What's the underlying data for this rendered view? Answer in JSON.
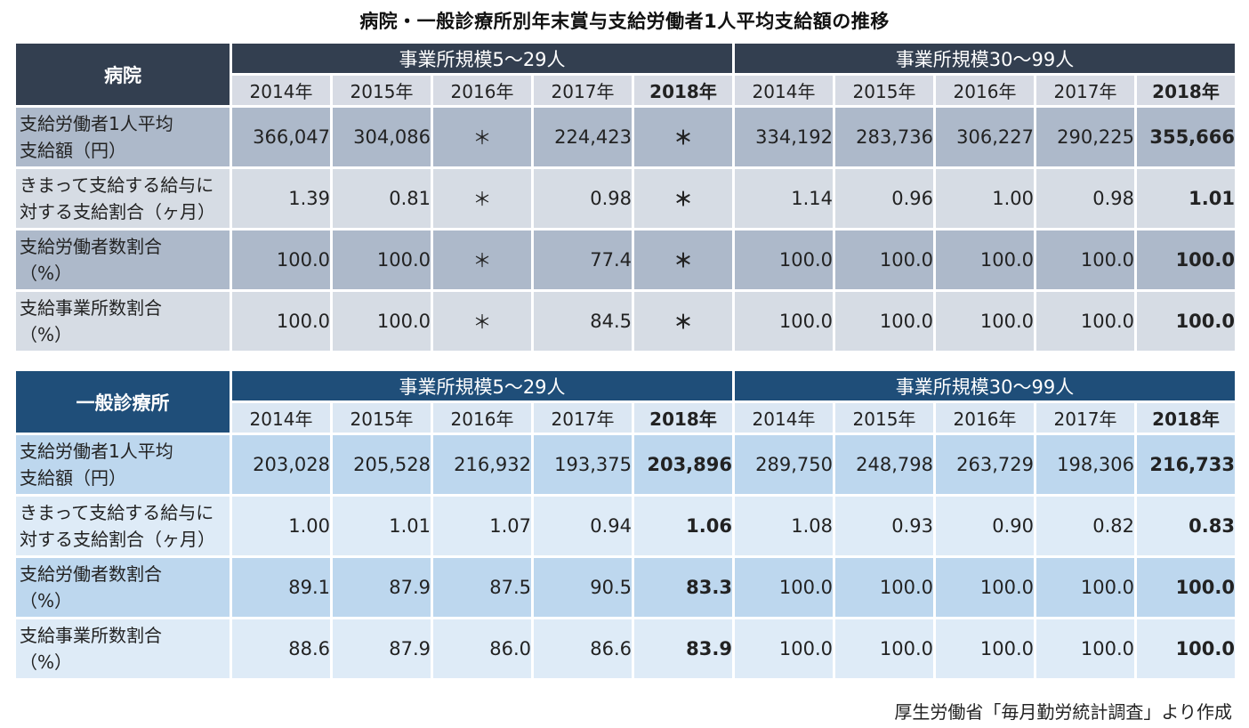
{
  "title": "病院・一般診療所別年末賞与支給労働者1人平均支給額の推移",
  "tables": [
    {
      "name": "病院",
      "groups": [
        "事業所規模5～29人",
        "事業所規模30～99人"
      ],
      "years": [
        "2014年",
        "2015年",
        "2016年",
        "2017年",
        "2018年"
      ],
      "rows": [
        {
          "label1": "支給労働者1人平均",
          "label2": "支給額（円）",
          "g1": [
            "366,047",
            "304,086",
            "＊",
            "224,423",
            "＊"
          ],
          "g2": [
            "334,192",
            "283,736",
            "306,227",
            "290,225",
            "355,666"
          ]
        },
        {
          "label1": "きまって支給する給与に",
          "label2": "対する支給割合（ヶ月）",
          "g1": [
            "1.39",
            "0.81",
            "＊",
            "0.98",
            "＊"
          ],
          "g2": [
            "1.14",
            "0.96",
            "1.00",
            "0.98",
            "1.01"
          ]
        },
        {
          "label1": "支給労働者数割合",
          "label2": "（%）",
          "g1": [
            "100.0",
            "100.0",
            "＊",
            "77.4",
            "＊"
          ],
          "g2": [
            "100.0",
            "100.0",
            "100.0",
            "100.0",
            "100.0"
          ]
        },
        {
          "label1": "支給事業所数割合",
          "label2": "（%）",
          "g1": [
            "100.0",
            "100.0",
            "＊",
            "84.5",
            "＊"
          ],
          "g2": [
            "100.0",
            "100.0",
            "100.0",
            "100.0",
            "100.0"
          ]
        }
      ]
    },
    {
      "name": "一般診療所",
      "groups": [
        "事業所規模5～29人",
        "事業所規模30～99人"
      ],
      "years": [
        "2014年",
        "2015年",
        "2016年",
        "2017年",
        "2018年"
      ],
      "rows": [
        {
          "label1": "支給労働者1人平均",
          "label2": "支給額（円）",
          "g1": [
            "203,028",
            "205,528",
            "216,932",
            "193,375",
            "203,896"
          ],
          "g2": [
            "289,750",
            "248,798",
            "263,729",
            "198,306",
            "216,733"
          ]
        },
        {
          "label1": "きまって支給する給与に",
          "label2": "対する支給割合（ヶ月）",
          "g1": [
            "1.00",
            "1.01",
            "1.07",
            "0.94",
            "1.06"
          ],
          "g2": [
            "1.08",
            "0.93",
            "0.90",
            "0.82",
            "0.83"
          ]
        },
        {
          "label1": "支給労働者数割合",
          "label2": "（%）",
          "g1": [
            "89.1",
            "87.9",
            "87.5",
            "90.5",
            "83.3"
          ],
          "g2": [
            "100.0",
            "100.0",
            "100.0",
            "100.0",
            "100.0"
          ]
        },
        {
          "label1": "支給事業所数割合",
          "label2": "（%）",
          "g1": [
            "88.6",
            "87.9",
            "86.0",
            "86.6",
            "83.9"
          ],
          "g2": [
            "100.0",
            "100.0",
            "100.0",
            "100.0",
            "100.0"
          ]
        }
      ]
    }
  ],
  "source": "厚生労働省「毎月勤労統計調査」より作成",
  "colors": {
    "hospital_header": "#333f50",
    "hospital_row_dark": "#adb9ca",
    "hospital_row_light": "#d6dce4",
    "clinic_header": "#1f4e79",
    "clinic_row_dark": "#bdd7ee",
    "clinic_row_light": "#deebf7"
  }
}
